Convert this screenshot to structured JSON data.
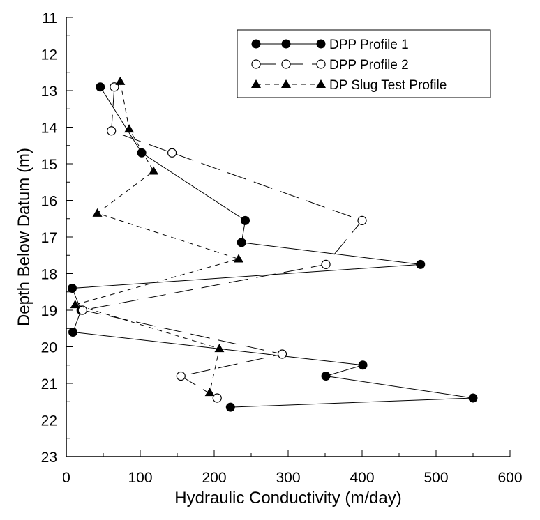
{
  "chart_data": {
    "type": "line",
    "xlabel": "Hydraulic Conductivity (m/day)",
    "ylabel": "Depth Below Datum (m)",
    "xlim": [
      0,
      600
    ],
    "ylim": [
      11,
      23
    ],
    "y_inverted": true,
    "xticks": [
      "0",
      "100",
      "200",
      "300",
      "400",
      "500",
      "600"
    ],
    "yticks": [
      "11",
      "12",
      "13",
      "14",
      "15",
      "16",
      "17",
      "18",
      "19",
      "20",
      "21",
      "22",
      "23"
    ],
    "grid": false,
    "legend_position": "top-right",
    "series": [
      {
        "name": "DPP Profile 1",
        "marker": "filled-circle",
        "line": "solid",
        "points": [
          [
            46,
            12.9
          ],
          [
            102,
            14.7
          ],
          [
            242,
            16.55
          ],
          [
            237,
            17.15
          ],
          [
            479,
            17.75
          ],
          [
            8,
            18.4
          ],
          [
            20,
            19.0
          ],
          [
            9,
            19.6
          ],
          [
            401,
            20.5
          ],
          [
            351,
            20.8
          ],
          [
            550,
            21.4
          ],
          [
            222,
            21.65
          ]
        ]
      },
      {
        "name": "DPP Profile 2",
        "marker": "open-circle",
        "line": "long-dash",
        "points": [
          [
            65,
            12.9
          ],
          [
            61,
            14.1
          ],
          [
            143,
            14.7
          ],
          [
            400,
            16.55
          ],
          [
            351,
            17.75
          ],
          [
            22,
            19.0
          ],
          [
            292,
            20.2
          ],
          [
            155,
            20.8
          ],
          [
            204,
            21.4
          ]
        ]
      },
      {
        "name": "DP Slug Test Profile",
        "marker": "filled-triangle",
        "line": "short-dash",
        "points": [
          [
            73,
            12.75
          ],
          [
            85,
            14.05
          ],
          [
            118,
            15.2
          ],
          [
            42,
            16.35
          ],
          [
            233,
            17.6
          ],
          [
            12,
            18.85
          ],
          [
            207,
            20.05
          ],
          [
            194,
            21.25
          ]
        ]
      }
    ]
  }
}
